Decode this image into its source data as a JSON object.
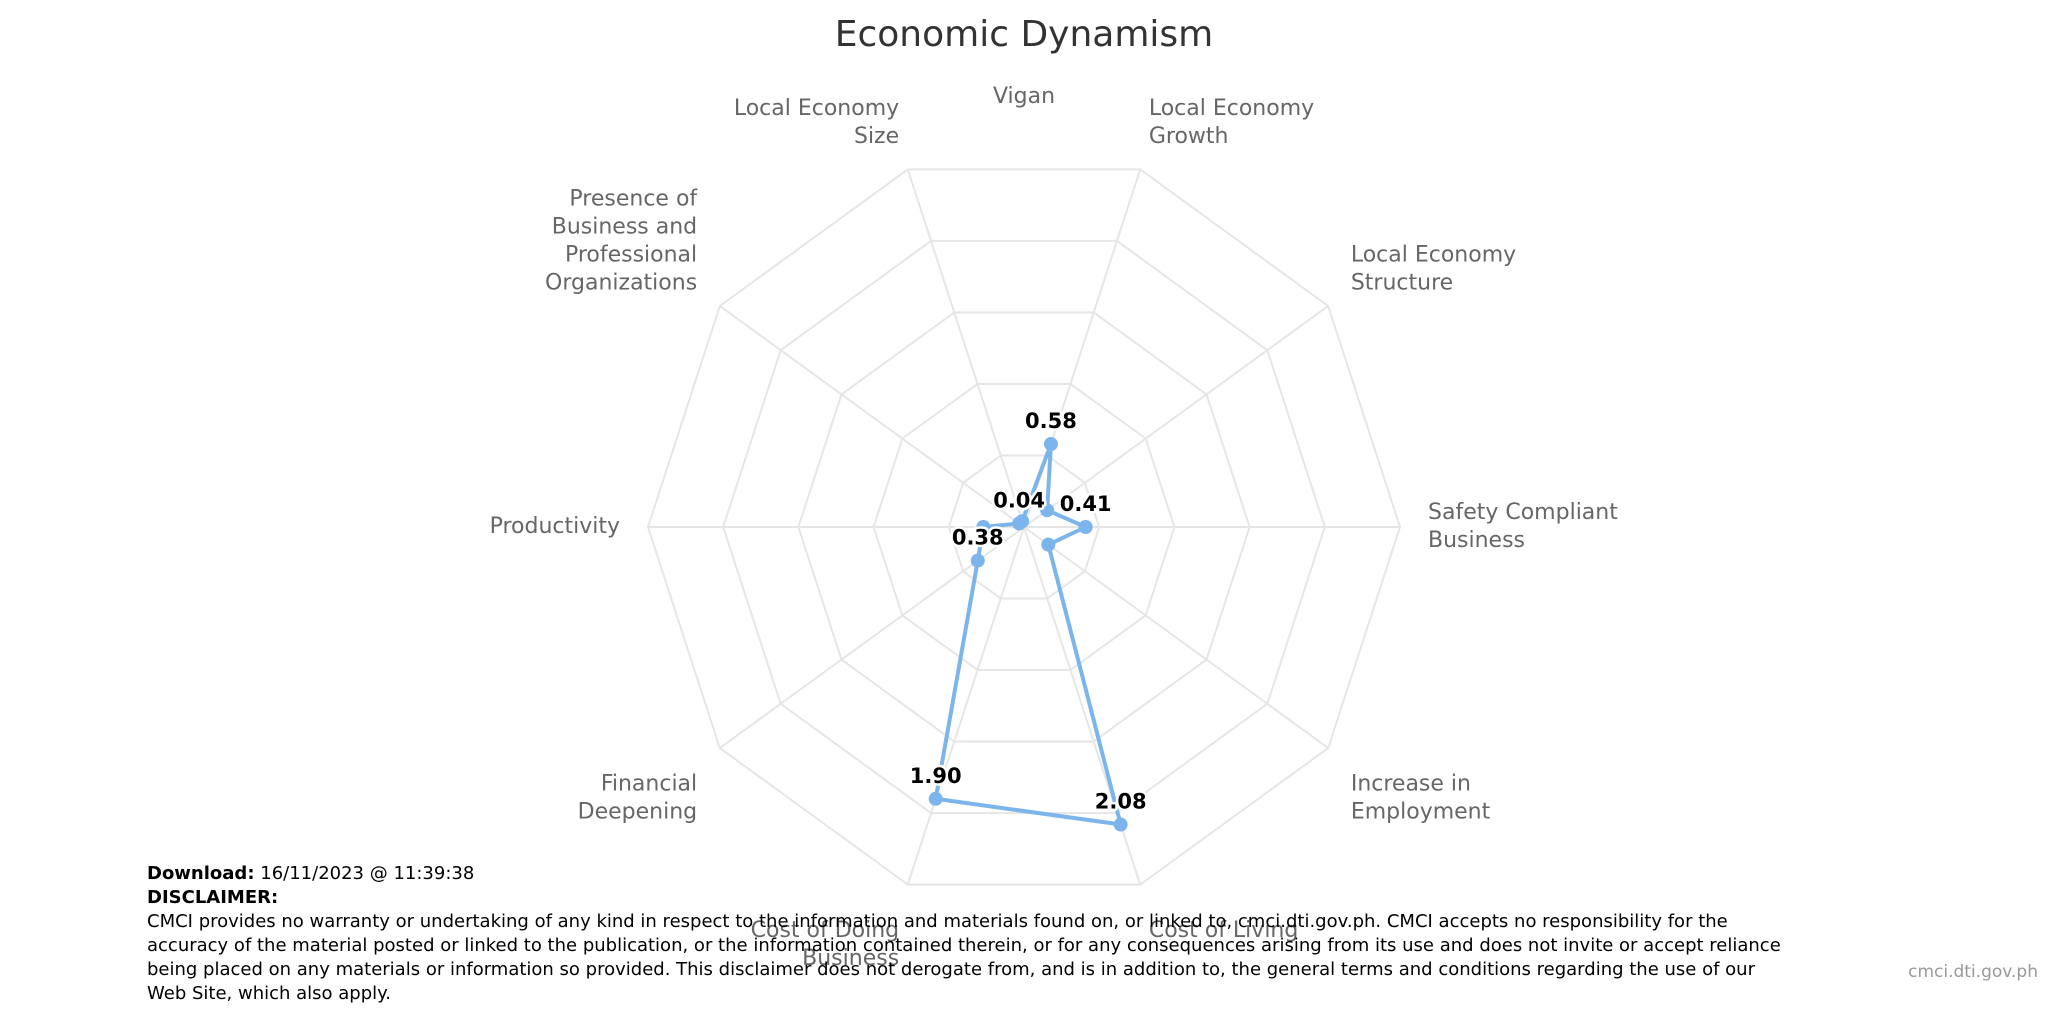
{
  "chart_data": {
    "type": "radar",
    "title": "Economic Dynamism",
    "pane_label": "Vigan",
    "grid_levels": 5,
    "axis_max": 2.5,
    "categories": [
      [
        "Local Economy",
        "Growth"
      ],
      [
        "Local Economy",
        "Structure"
      ],
      [
        "Safety Compliant",
        "Business"
      ],
      [
        "Increase in",
        "Employment"
      ],
      [
        "Cost of Living"
      ],
      [
        "Cost of Doing",
        "Business"
      ],
      [
        "Financial",
        "Deepening"
      ],
      [
        "Productivity"
      ],
      [
        "Presence of",
        "Business and",
        "Professional",
        "Organizations"
      ],
      [
        "Local Economy",
        "Size"
      ]
    ],
    "series": [
      {
        "name": "Vigan",
        "color": "#7cb5ec",
        "values": [
          0.58,
          0.19,
          0.41,
          0.2,
          2.08,
          1.9,
          0.38,
          0.27,
          0.04,
          0.04
        ],
        "labels": [
          "0.58",
          "",
          "0.41",
          "",
          "2.08",
          "1.90",
          "0.38",
          "",
          "0.04",
          ""
        ]
      }
    ]
  },
  "footer": {
    "download_label": "Download:",
    "download_value": "16/11/2023 @ 11:39:38",
    "disclaimer_label": "DISCLAIMER:",
    "disclaimer_text": "CMCI provides no warranty or undertaking of any kind in respect to the information and materials found on, or linked to, cmci.dti.gov.ph. CMCI accepts no responsibility for the accuracy of the material posted or linked to the publication, or the information contained therein, or for any consequences arising from its use and does not invite or accept reliance being placed on any materials or information so provided. This disclaimer does not derogate from, and is in addition to, the general terms and conditions regarding the use of our Web Site, which also apply."
  },
  "credit": "cmci.dti.gov.ph"
}
